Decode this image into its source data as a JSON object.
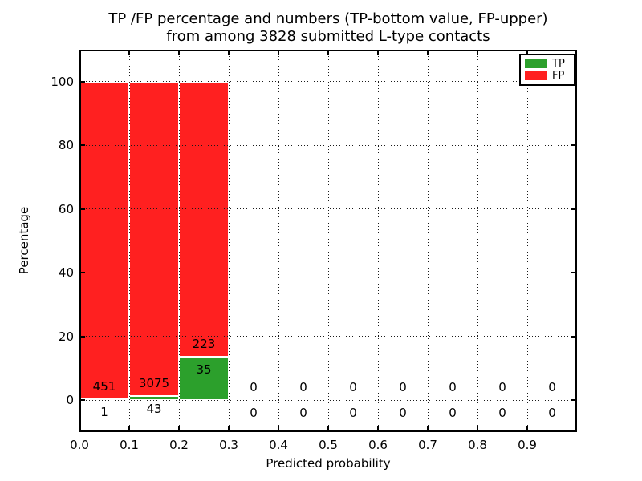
{
  "title": {
    "line1": "TP /FP percentage and numbers (TP-bottom value, FP-upper)",
    "line2": "from among 3828 submitted L-type contacts"
  },
  "axes": {
    "xlabel": "Predicted probability",
    "ylabel": "Percentage"
  },
  "legend": {
    "items": [
      {
        "label": "TP",
        "color": "#2ca02c"
      },
      {
        "label": "FP",
        "color": "#ff2020"
      }
    ]
  },
  "colors": {
    "tp": "#2ca02c",
    "fp": "#ff2020",
    "grid": "#1a1a1a",
    "background": "#ffffff"
  },
  "chart_data": {
    "type": "bar",
    "stacked": true,
    "title": "TP /FP percentage and numbers (TP-bottom value, FP-upper) from among 3828 submitted L-type contacts",
    "xlabel": "Predicted probability",
    "ylabel": "Percentage",
    "xlim": [
      0.0,
      1.0
    ],
    "ylim": [
      -10,
      110
    ],
    "xticks": [
      0.0,
      0.1,
      0.2,
      0.3,
      0.4,
      0.5,
      0.6,
      0.7,
      0.8,
      0.9
    ],
    "xtick_labels": [
      "0.0",
      "0.1",
      "0.2",
      "0.3",
      "0.4",
      "0.5",
      "0.6",
      "0.7",
      "0.8",
      "0.9"
    ],
    "yticks": [
      0,
      20,
      40,
      60,
      80,
      100
    ],
    "ytick_labels": [
      "0",
      "20",
      "40",
      "60",
      "80",
      "100"
    ],
    "grid": "dotted",
    "legend_position": "upper right",
    "total_contacts": 3828,
    "bin_width": 0.1,
    "series_meta": [
      {
        "name": "TP",
        "color": "#2ca02c",
        "position": "bottom"
      },
      {
        "name": "FP",
        "color": "#ff2020",
        "position": "upper"
      }
    ],
    "bins": [
      {
        "range": [
          0.0,
          0.1
        ],
        "tp": 1,
        "fp": 451,
        "tp_pct": 0.22,
        "fp_pct": 99.78
      },
      {
        "range": [
          0.1,
          0.2
        ],
        "tp": 43,
        "fp": 3075,
        "tp_pct": 1.38,
        "fp_pct": 98.62
      },
      {
        "range": [
          0.2,
          0.3
        ],
        "tp": 35,
        "fp": 223,
        "tp_pct": 13.57,
        "fp_pct": 86.43
      },
      {
        "range": [
          0.3,
          0.4
        ],
        "tp": 0,
        "fp": 0,
        "tp_pct": 0,
        "fp_pct": 0
      },
      {
        "range": [
          0.4,
          0.5
        ],
        "tp": 0,
        "fp": 0,
        "tp_pct": 0,
        "fp_pct": 0
      },
      {
        "range": [
          0.5,
          0.6
        ],
        "tp": 0,
        "fp": 0,
        "tp_pct": 0,
        "fp_pct": 0
      },
      {
        "range": [
          0.6,
          0.7
        ],
        "tp": 0,
        "fp": 0,
        "tp_pct": 0,
        "fp_pct": 0
      },
      {
        "range": [
          0.7,
          0.8
        ],
        "tp": 0,
        "fp": 0,
        "tp_pct": 0,
        "fp_pct": 0
      },
      {
        "range": [
          0.8,
          0.9
        ],
        "tp": 0,
        "fp": 0,
        "tp_pct": 0,
        "fp_pct": 0
      },
      {
        "range": [
          0.9,
          1.0
        ],
        "tp": 0,
        "fp": 0,
        "tp_pct": 0,
        "fp_pct": 0
      }
    ]
  }
}
